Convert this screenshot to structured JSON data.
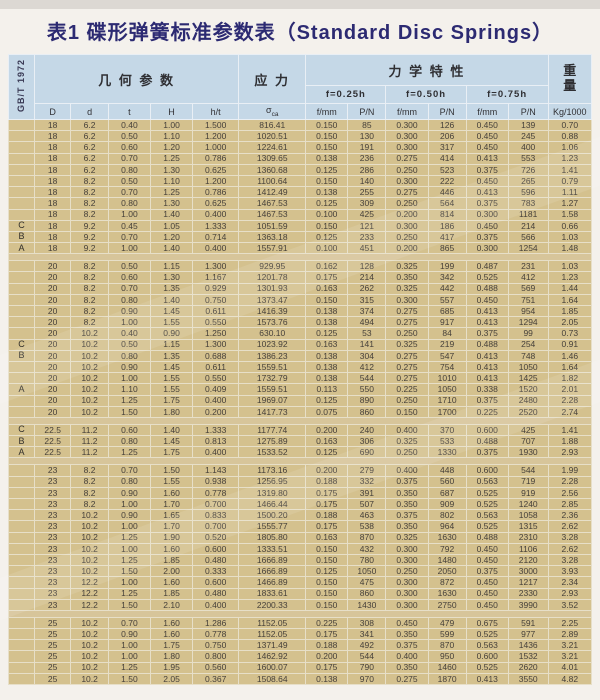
{
  "title": "表1 碟形弹簧标准参数表（Standard Disc Springs）",
  "standard": "GB/T 1972",
  "header": {
    "geometry_group": "几 何 参 数",
    "stress_group": "应 力",
    "mech_group": "力 学 特 性",
    "weight_group": "重\n量",
    "deflection_groups": [
      "f=0.25h",
      "f=0.50h",
      "f=0.75h"
    ],
    "columns": [
      "D",
      "d",
      "t",
      "H",
      "h/t"
    ],
    "stress_symbol": "σ",
    "stress_sub": "ca",
    "f_label": "f/mm",
    "p_label": "P/N",
    "weight_unit": "Kg/1000"
  },
  "colors": {
    "header_bg": "#c5d8e7",
    "body_bg": "#d4c18e",
    "title_text": "#2c2a72",
    "grid_line": "#e7dfc8"
  },
  "chart_data": {
    "type": "table",
    "title": "表1 碟形弹簧标准参数表（Standard Disc Springs）",
    "columns": [
      "type",
      "D",
      "d",
      "t",
      "H",
      "h/t",
      "σca",
      "f/mm(0.25h)",
      "P/N(0.25h)",
      "f/mm(0.50h)",
      "P/N(0.50h)",
      "f/mm(0.75h)",
      "P/N(0.75h)",
      "Kg/1000"
    ]
  },
  "groups": [
    {
      "rows": [
        [
          "",
          "18",
          "6.2",
          "0.40",
          "1.00",
          "1.500",
          "816.41",
          "0.150",
          "85",
          "0.300",
          "126",
          "0.450",
          "139",
          "0.70"
        ],
        [
          "",
          "18",
          "6.2",
          "0.50",
          "1.10",
          "1.200",
          "1020.51",
          "0.150",
          "130",
          "0.300",
          "206",
          "0.450",
          "245",
          "0.88"
        ],
        [
          "",
          "18",
          "6.2",
          "0.60",
          "1.20",
          "1.000",
          "1224.61",
          "0.150",
          "191",
          "0.300",
          "317",
          "0.450",
          "400",
          "1.06"
        ],
        [
          "",
          "18",
          "6.2",
          "0.70",
          "1.25",
          "0.786",
          "1309.65",
          "0.138",
          "236",
          "0.275",
          "414",
          "0.413",
          "553",
          "1.23"
        ],
        [
          "",
          "18",
          "6.2",
          "0.80",
          "1.30",
          "0.625",
          "1360.68",
          "0.125",
          "286",
          "0.250",
          "523",
          "0.375",
          "726",
          "1.41"
        ],
        [
          "",
          "18",
          "8.2",
          "0.50",
          "1.10",
          "1.200",
          "1100.64",
          "0.150",
          "140",
          "0.300",
          "222",
          "0.450",
          "265",
          "0.79"
        ],
        [
          "",
          "18",
          "8.2",
          "0.70",
          "1.25",
          "0.786",
          "1412.49",
          "0.138",
          "255",
          "0.275",
          "446",
          "0.413",
          "596",
          "1.11"
        ],
        [
          "",
          "18",
          "8.2",
          "0.80",
          "1.30",
          "0.625",
          "1467.53",
          "0.125",
          "309",
          "0.250",
          "564",
          "0.375",
          "783",
          "1.27"
        ],
        [
          "",
          "18",
          "8.2",
          "1.00",
          "1.40",
          "0.400",
          "1467.53",
          "0.100",
          "425",
          "0.200",
          "814",
          "0.300",
          "1181",
          "1.58"
        ],
        [
          "C",
          "18",
          "9.2",
          "0.45",
          "1.05",
          "1.333",
          "1051.59",
          "0.150",
          "121",
          "0.300",
          "186",
          "0.450",
          "214",
          "0.66"
        ],
        [
          "B",
          "18",
          "9.2",
          "0.70",
          "1.20",
          "0.714",
          "1363.18",
          "0.125",
          "233",
          "0.250",
          "417",
          "0.375",
          "566",
          "1.03"
        ],
        [
          "A",
          "18",
          "9.2",
          "1.00",
          "1.40",
          "0.400",
          "1557.91",
          "0.100",
          "451",
          "0.200",
          "865",
          "0.300",
          "1254",
          "1.48"
        ]
      ]
    },
    {
      "rows": [
        [
          "",
          "20",
          "8.2",
          "0.50",
          "1.15",
          "1.300",
          "929.95",
          "0.162",
          "128",
          "0.325",
          "199",
          "0.487",
          "231",
          "1.03"
        ],
        [
          "",
          "20",
          "8.2",
          "0.60",
          "1.30",
          "1.167",
          "1201.78",
          "0.175",
          "214",
          "0.350",
          "342",
          "0.525",
          "412",
          "1.23"
        ],
        [
          "",
          "20",
          "8.2",
          "0.70",
          "1.35",
          "0.929",
          "1301.93",
          "0.163",
          "262",
          "0.325",
          "442",
          "0.488",
          "569",
          "1.44"
        ],
        [
          "",
          "20",
          "8.2",
          "0.80",
          "1.40",
          "0.750",
          "1373.47",
          "0.150",
          "315",
          "0.300",
          "557",
          "0.450",
          "751",
          "1.64"
        ],
        [
          "",
          "20",
          "8.2",
          "0.90",
          "1.45",
          "0.611",
          "1416.39",
          "0.138",
          "374",
          "0.275",
          "685",
          "0.413",
          "954",
          "1.85"
        ],
        [
          "",
          "20",
          "8.2",
          "1.00",
          "1.55",
          "0.550",
          "1573.76",
          "0.138",
          "494",
          "0.275",
          "917",
          "0.413",
          "1294",
          "2.05"
        ],
        [
          "",
          "20",
          "10.2",
          "0.40",
          "0.90",
          "1.250",
          "630.10",
          "0.125",
          "53",
          "0.250",
          "84",
          "0.375",
          "99",
          "0.73"
        ],
        [
          "C",
          "20",
          "10.2",
          "0.50",
          "1.15",
          "1.300",
          "1023.92",
          "0.163",
          "141",
          "0.325",
          "219",
          "0.488",
          "254",
          "0.91"
        ],
        [
          "B",
          "20",
          "10.2",
          "0.80",
          "1.35",
          "0.688",
          "1386.23",
          "0.138",
          "304",
          "0.275",
          "547",
          "0.413",
          "748",
          "1.46"
        ],
        [
          "",
          "20",
          "10.2",
          "0.90",
          "1.45",
          "0.611",
          "1559.51",
          "0.138",
          "412",
          "0.275",
          "754",
          "0.413",
          "1050",
          "1.64"
        ],
        [
          "",
          "20",
          "10.2",
          "1.00",
          "1.55",
          "0.550",
          "1732.79",
          "0.138",
          "544",
          "0.275",
          "1010",
          "0.413",
          "1425",
          "1.82"
        ],
        [
          "A",
          "20",
          "10.2",
          "1.10",
          "1.55",
          "0.409",
          "1559.51",
          "0.113",
          "550",
          "0.225",
          "1050",
          "0.338",
          "1520",
          "2.01"
        ],
        [
          "",
          "20",
          "10.2",
          "1.25",
          "1.75",
          "0.400",
          "1969.07",
          "0.125",
          "890",
          "0.250",
          "1710",
          "0.375",
          "2480",
          "2.28"
        ],
        [
          "",
          "20",
          "10.2",
          "1.50",
          "1.80",
          "0.200",
          "1417.73",
          "0.075",
          "860",
          "0.150",
          "1700",
          "0.225",
          "2520",
          "2.74"
        ]
      ]
    },
    {
      "rows": [
        [
          "C",
          "22.5",
          "11.2",
          "0.60",
          "1.40",
          "1.333",
          "1177.74",
          "0.200",
          "240",
          "0.400",
          "370",
          "0.600",
          "425",
          "1.41"
        ],
        [
          "B",
          "22.5",
          "11.2",
          "0.80",
          "1.45",
          "0.813",
          "1275.89",
          "0.163",
          "306",
          "0.325",
          "533",
          "0.488",
          "707",
          "1.88"
        ],
        [
          "A",
          "22.5",
          "11.2",
          "1.25",
          "1.75",
          "0.400",
          "1533.52",
          "0.125",
          "690",
          "0.250",
          "1330",
          "0.375",
          "1930",
          "2.93"
        ]
      ]
    },
    {
      "rows": [
        [
          "",
          "23",
          "8.2",
          "0.70",
          "1.50",
          "1.143",
          "1173.16",
          "0.200",
          "279",
          "0.400",
          "448",
          "0.600",
          "544",
          "1.99"
        ],
        [
          "",
          "23",
          "8.2",
          "0.80",
          "1.55",
          "0.938",
          "1256.95",
          "0.188",
          "332",
          "0.375",
          "560",
          "0.563",
          "719",
          "2.28"
        ],
        [
          "",
          "23",
          "8.2",
          "0.90",
          "1.60",
          "0.778",
          "1319.80",
          "0.175",
          "391",
          "0.350",
          "687",
          "0.525",
          "919",
          "2.56"
        ],
        [
          "",
          "23",
          "8.2",
          "1.00",
          "1.70",
          "0.700",
          "1466.44",
          "0.175",
          "507",
          "0.350",
          "909",
          "0.525",
          "1240",
          "2.85"
        ],
        [
          "",
          "23",
          "10.2",
          "0.90",
          "1.65",
          "0.833",
          "1500.20",
          "0.188",
          "463",
          "0.375",
          "802",
          "0.563",
          "1058",
          "2.36"
        ],
        [
          "",
          "23",
          "10.2",
          "1.00",
          "1.70",
          "0.700",
          "1555.77",
          "0.175",
          "538",
          "0.350",
          "964",
          "0.525",
          "1315",
          "2.62"
        ],
        [
          "",
          "23",
          "10.2",
          "1.25",
          "1.90",
          "0.520",
          "1805.80",
          "0.163",
          "870",
          "0.325",
          "1630",
          "0.488",
          "2310",
          "3.28"
        ],
        [
          "",
          "23",
          "10.2",
          "1.00",
          "1.60",
          "0.600",
          "1333.51",
          "0.150",
          "432",
          "0.300",
          "792",
          "0.450",
          "1106",
          "2.62"
        ],
        [
          "",
          "23",
          "10.2",
          "1.25",
          "1.85",
          "0.480",
          "1666.89",
          "0.150",
          "780",
          "0.300",
          "1480",
          "0.450",
          "2120",
          "3.28"
        ],
        [
          "",
          "23",
          "10.2",
          "1.50",
          "2.00",
          "0.333",
          "1666.89",
          "0.125",
          "1050",
          "0.250",
          "2050",
          "0.375",
          "3000",
          "3.93"
        ],
        [
          "",
          "23",
          "12.2",
          "1.00",
          "1.60",
          "0.600",
          "1466.89",
          "0.150",
          "475",
          "0.300",
          "872",
          "0.450",
          "1217",
          "2.34"
        ],
        [
          "",
          "23",
          "12.2",
          "1.25",
          "1.85",
          "0.480",
          "1833.61",
          "0.150",
          "860",
          "0.300",
          "1630",
          "0.450",
          "2330",
          "2.93"
        ],
        [
          "",
          "23",
          "12.2",
          "1.50",
          "2.10",
          "0.400",
          "2200.33",
          "0.150",
          "1430",
          "0.300",
          "2750",
          "0.450",
          "3990",
          "3.52"
        ]
      ]
    },
    {
      "rows": [
        [
          "",
          "25",
          "10.2",
          "0.70",
          "1.60",
          "1.286",
          "1152.05",
          "0.225",
          "308",
          "0.450",
          "479",
          "0.675",
          "591",
          "2.25"
        ],
        [
          "",
          "25",
          "10.2",
          "0.90",
          "1.60",
          "0.778",
          "1152.05",
          "0.175",
          "341",
          "0.350",
          "599",
          "0.525",
          "977",
          "2.89"
        ],
        [
          "",
          "25",
          "10.2",
          "1.00",
          "1.75",
          "0.750",
          "1371.49",
          "0.188",
          "492",
          "0.375",
          "870",
          "0.563",
          "1436",
          "3.21"
        ],
        [
          "",
          "25",
          "10.2",
          "1.00",
          "1.80",
          "0.800",
          "1462.92",
          "0.200",
          "544",
          "0.400",
          "950",
          "0.600",
          "1532",
          "3.21"
        ],
        [
          "",
          "25",
          "10.2",
          "1.25",
          "1.95",
          "0.560",
          "1600.07",
          "0.175",
          "790",
          "0.350",
          "1460",
          "0.525",
          "2620",
          "4.01"
        ],
        [
          "",
          "25",
          "10.2",
          "1.50",
          "2.05",
          "0.367",
          "1508.64",
          "0.138",
          "970",
          "0.275",
          "1870",
          "0.413",
          "3550",
          "4.82"
        ]
      ]
    }
  ]
}
